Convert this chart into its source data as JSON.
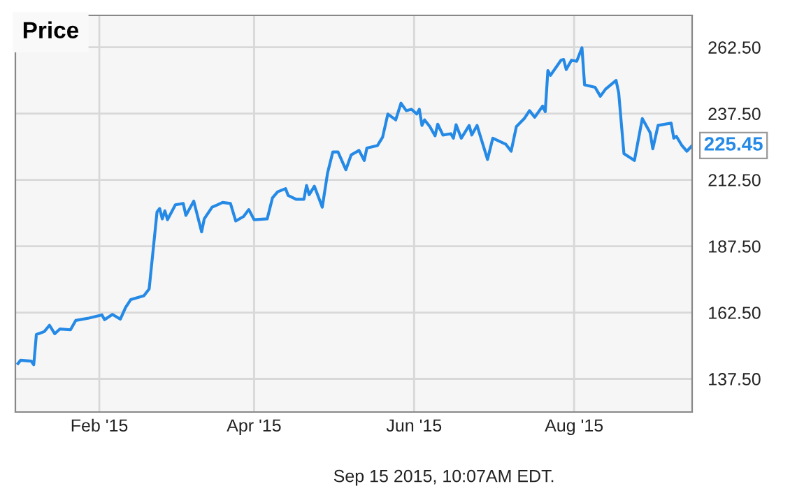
{
  "chart_data": {
    "type": "line",
    "title": "Price",
    "x": [
      "2015-01-01",
      "2015-01-02",
      "2015-01-06",
      "2015-01-07",
      "2015-01-08",
      "2015-01-11",
      "2015-01-13",
      "2015-01-15",
      "2015-01-17",
      "2015-01-21",
      "2015-01-23",
      "2015-01-28",
      "2015-02-02",
      "2015-02-03",
      "2015-02-06",
      "2015-02-09",
      "2015-02-11",
      "2015-02-13",
      "2015-02-18",
      "2015-02-20",
      "2015-02-23",
      "2015-02-24",
      "2015-02-25",
      "2015-02-26",
      "2015-02-27",
      "2015-03-02",
      "2015-03-05",
      "2015-03-06",
      "2015-03-09",
      "2015-03-12",
      "2015-03-13",
      "2015-03-16",
      "2015-03-18",
      "2015-03-20",
      "2015-03-23",
      "2015-03-25",
      "2015-03-28",
      "2015-03-30",
      "2015-04-01",
      "2015-04-06",
      "2015-04-08",
      "2015-04-10",
      "2015-04-13",
      "2015-04-14",
      "2015-04-17",
      "2015-04-20",
      "2015-04-21",
      "2015-04-22",
      "2015-04-24",
      "2015-04-27",
      "2015-04-29",
      "2015-05-01",
      "2015-05-03",
      "2015-05-06",
      "2015-05-08",
      "2015-05-11",
      "2015-05-13",
      "2015-05-14",
      "2015-05-18",
      "2015-05-20",
      "2015-05-22",
      "2015-05-25",
      "2015-05-27",
      "2015-05-29",
      "2015-05-31",
      "2015-06-02",
      "2015-06-03",
      "2015-06-04",
      "2015-06-05",
      "2015-06-07",
      "2015-06-09",
      "2015-06-10",
      "2015-06-12",
      "2015-06-15",
      "2015-06-16",
      "2015-06-17",
      "2015-06-19",
      "2015-06-22",
      "2015-06-23",
      "2015-06-25",
      "2015-06-29",
      "2015-07-01",
      "2015-07-06",
      "2015-07-08",
      "2015-07-10",
      "2015-07-13",
      "2015-07-15",
      "2015-07-17",
      "2015-07-20",
      "2015-07-21",
      "2015-07-22",
      "2015-07-23",
      "2015-07-27",
      "2015-07-28",
      "2015-07-29",
      "2015-07-31",
      "2015-08-02",
      "2015-08-04",
      "2015-08-05",
      "2015-08-09",
      "2015-08-11",
      "2015-08-13",
      "2015-08-17",
      "2015-08-18",
      "2015-08-20",
      "2015-08-24",
      "2015-08-27",
      "2015-08-30",
      "2015-08-31",
      "2015-09-02",
      "2015-09-07",
      "2015-09-08",
      "2015-09-09",
      "2015-09-11",
      "2015-09-13",
      "2015-09-15"
    ],
    "series": [
      {
        "color": "#2589e6",
        "values": [
          143.3,
          144.5,
          144.2,
          142.8,
          154.2,
          155.3,
          157.7,
          154.5,
          156.3,
          156.0,
          159.5,
          160.4,
          161.6,
          159.8,
          161.8,
          160.0,
          164.4,
          167.4,
          168.8,
          171.4,
          200.4,
          201.7,
          197.8,
          200.8,
          197.5,
          203.1,
          203.6,
          199.1,
          204.5,
          192.9,
          197.8,
          202.2,
          203.1,
          204.0,
          203.6,
          197.0,
          198.7,
          201.3,
          197.5,
          197.8,
          205.7,
          208.0,
          209.2,
          206.6,
          205.2,
          205.2,
          210.4,
          206.9,
          210.1,
          202.2,
          215.0,
          223.0,
          223.0,
          216.3,
          221.9,
          223.6,
          219.8,
          224.5,
          225.4,
          228.6,
          237.3,
          235.1,
          241.4,
          238.6,
          239.1,
          237.3,
          239.1,
          233.0,
          235.1,
          232.6,
          229.1,
          233.5,
          229.4,
          229.9,
          228.2,
          233.3,
          228.2,
          233.0,
          229.4,
          233.0,
          220.2,
          228.2,
          225.9,
          223.3,
          232.6,
          235.6,
          238.6,
          236.1,
          240.3,
          238.2,
          253.7,
          251.9,
          257.6,
          257.9,
          254.1,
          257.6,
          257.2,
          262.3,
          248.3,
          247.4,
          244.0,
          246.7,
          250.0,
          245.3,
          222.4,
          219.8,
          235.6,
          230.3,
          224.2,
          233.0,
          233.9,
          228.2,
          228.9,
          225.6,
          223.3,
          225.45
        ],
        "value_labels": [
          null,
          null,
          null,
          null,
          null,
          null,
          null,
          null,
          null,
          null,
          null,
          null,
          null,
          null,
          null,
          null,
          null,
          null,
          null,
          null,
          null,
          null,
          null,
          null,
          null,
          null,
          null,
          null,
          null,
          null,
          null,
          null,
          null,
          null,
          null,
          null,
          null,
          null,
          null,
          null,
          null,
          null,
          null,
          null,
          null,
          null,
          null,
          null,
          null,
          null,
          null,
          null,
          null,
          null,
          null,
          null,
          null,
          null,
          null,
          null,
          null,
          null,
          null,
          null,
          null,
          null,
          null,
          null,
          null,
          null,
          null,
          null,
          null,
          null,
          null,
          null,
          null,
          null,
          null,
          null,
          null,
          null,
          null,
          null,
          null,
          null,
          null,
          null,
          null,
          null,
          null,
          null,
          null,
          null,
          null,
          null,
          null,
          null,
          null,
          null,
          null,
          null,
          null,
          null,
          null,
          null,
          null,
          null,
          null,
          null,
          null,
          null,
          null,
          null,
          null,
          "225.45"
        ]
      }
    ],
    "xlim": [
      "2014-12-31",
      "2015-09-15"
    ],
    "xticks": [
      {
        "value": "2015-02-01",
        "label": "Feb '15"
      },
      {
        "value": "2015-04-01",
        "label": "Apr '15"
      },
      {
        "value": "2015-06-01",
        "label": "Jun '15"
      },
      {
        "value": "2015-08-01",
        "label": "Aug '15"
      }
    ],
    "ylim": [
      125,
      274.5
    ],
    "yticks": [
      {
        "value": 137.5,
        "label": "137.50"
      },
      {
        "value": 162.5,
        "label": "162.50"
      },
      {
        "value": 187.5,
        "label": "187.50"
      },
      {
        "value": 212.5,
        "label": "212.50"
      },
      {
        "value": 237.5,
        "label": "237.50"
      },
      {
        "value": 262.5,
        "label": "262.50"
      }
    ],
    "grid": true,
    "marker": "none",
    "line_style": "solid",
    "annotations": [
      "Sep 15 2015, 10:07AM EDT."
    ]
  }
}
